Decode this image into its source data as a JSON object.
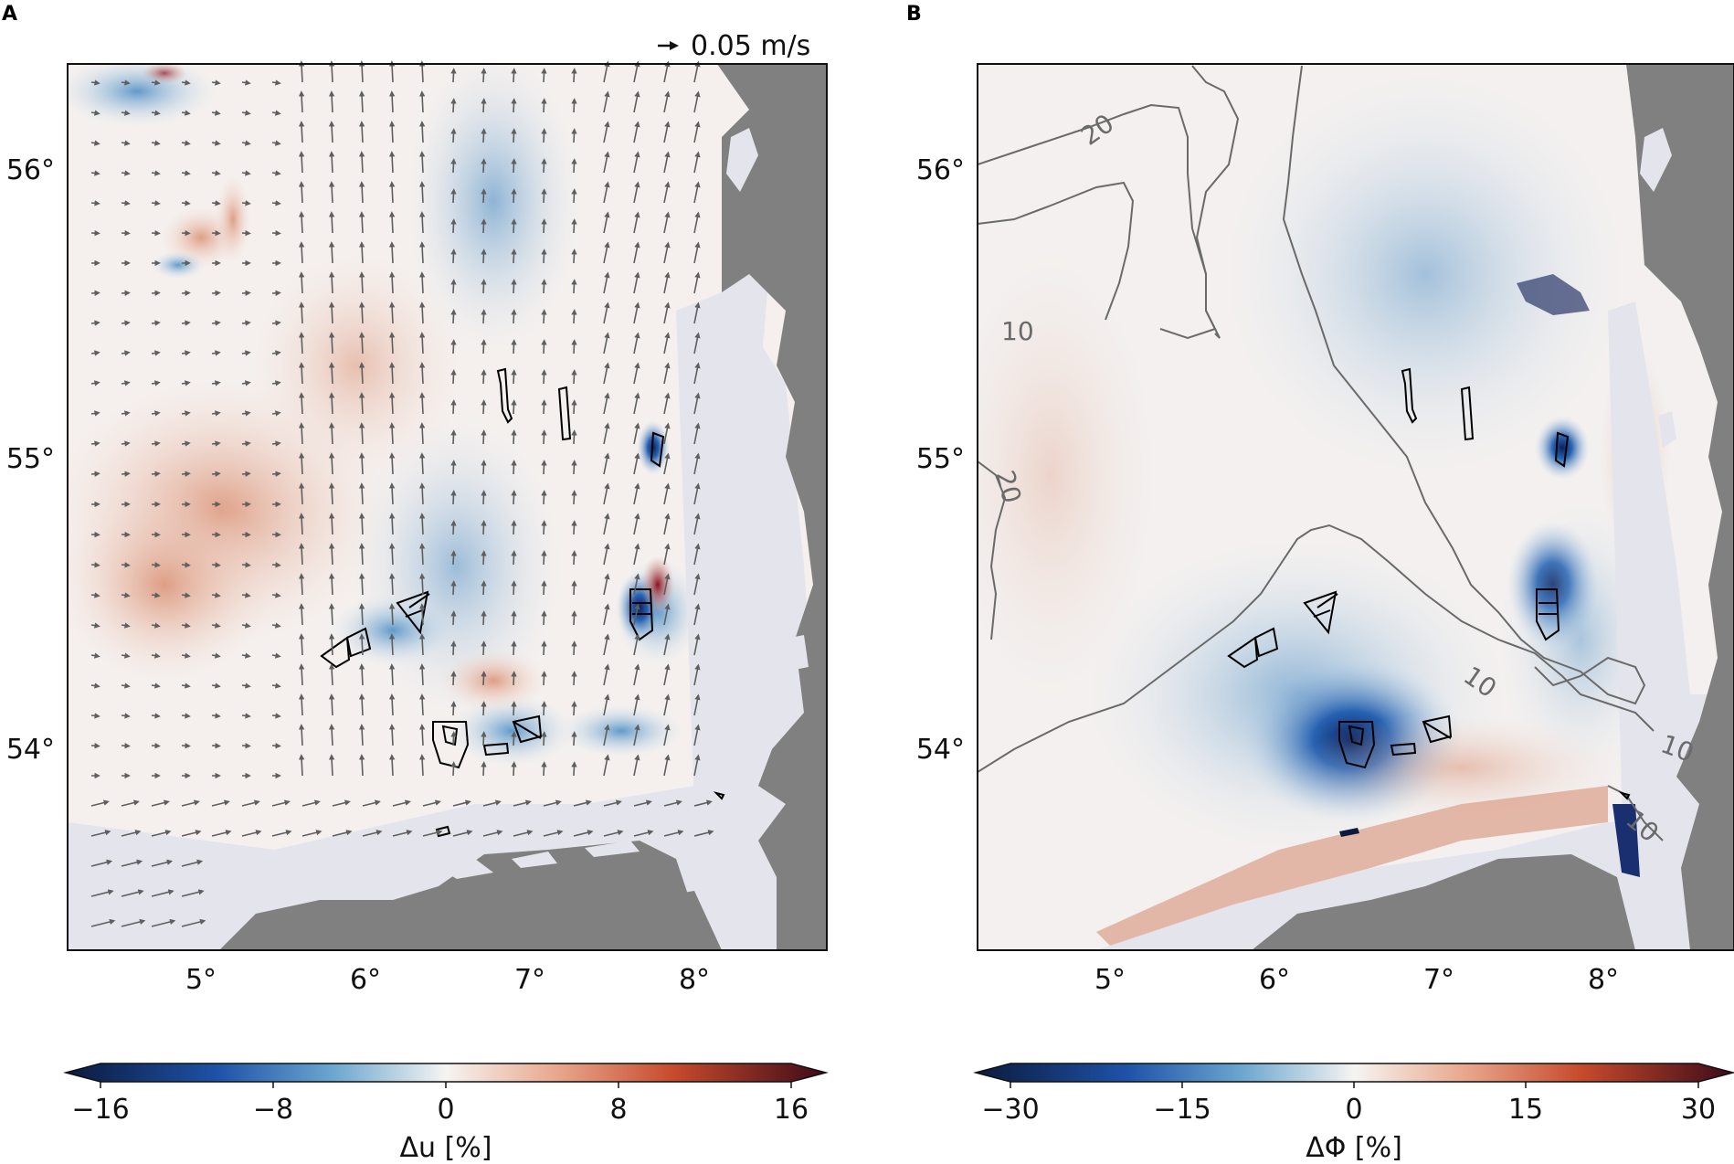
{
  "panels": [
    {
      "letter": "A",
      "quiver_key": {
        "label": "0.05 m/s"
      },
      "lat_ticks": [
        "56°",
        "55°",
        "54°"
      ],
      "lon_ticks": [
        "5°",
        "6°",
        "7°",
        "8°"
      ],
      "colorbar": {
        "ticks": [
          "−16",
          "−8",
          "0",
          "8",
          "16"
        ],
        "label": "Δu [%]",
        "range": [
          -16,
          16
        ]
      }
    },
    {
      "letter": "B",
      "lat_ticks": [
        "56°",
        "55°",
        "54°"
      ],
      "lon_ticks": [
        "5°",
        "6°",
        "7°",
        "8°"
      ],
      "contour_labels": [
        "20",
        "10",
        "20",
        "10",
        "10",
        "10"
      ],
      "colorbar": {
        "ticks": [
          "−30",
          "−15",
          "0",
          "15",
          "30"
        ],
        "label": "ΔΦ [%]",
        "range": [
          -30,
          30
        ]
      }
    }
  ],
  "colors": {
    "land": "#808080",
    "shallow": "#e4e4ec",
    "negative": "#2d6bb0",
    "positive": "#c8553d",
    "neutral": "#f5f2f0",
    "arrow": "#5f5f5f",
    "contour": "#6a6a6a"
  }
}
